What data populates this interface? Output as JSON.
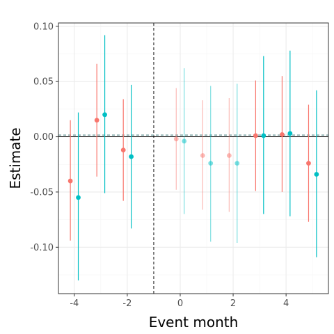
{
  "chart_data": {
    "type": "scatter",
    "title": "",
    "xlabel": "Event month",
    "ylabel": "Estimate",
    "xlim": [
      -4.6,
      5.6
    ],
    "ylim": [
      -0.142,
      0.103
    ],
    "x_ticks": [
      -4,
      -2,
      0,
      2,
      4
    ],
    "x_tick_labels": [
      "-4",
      "-2",
      "0",
      "2",
      "4"
    ],
    "y_ticks": [
      -0.1,
      -0.05,
      0.0,
      0.05,
      0.1
    ],
    "y_tick_labels": [
      "-0.10",
      "-0.05",
      "0.00",
      "0.05",
      "0.10"
    ],
    "grid": true,
    "legend": "none",
    "reference_lines": {
      "vertical_dashed_x": -1,
      "horizontal_solid_y": 0,
      "horizontal_dashed_y": 0.0015
    },
    "series": [
      {
        "color": "#F8766D",
        "points": [
          {
            "x": -4.15,
            "y": -0.04,
            "lo": -0.094,
            "hi": 0.015,
            "faded": false
          },
          {
            "x": -3.15,
            "y": 0.015,
            "lo": -0.036,
            "hi": 0.066,
            "faded": false
          },
          {
            "x": -2.15,
            "y": -0.012,
            "lo": -0.058,
            "hi": 0.034,
            "faded": false
          },
          {
            "x": -0.15,
            "y": -0.002,
            "lo": -0.048,
            "hi": 0.044,
            "faded": true
          },
          {
            "x": 0.85,
            "y": -0.017,
            "lo": -0.066,
            "hi": 0.033,
            "faded": true
          },
          {
            "x": 1.85,
            "y": -0.017,
            "lo": -0.068,
            "hi": 0.035,
            "faded": true
          },
          {
            "x": 2.85,
            "y": 0.001,
            "lo": -0.049,
            "hi": 0.051,
            "faded": false
          },
          {
            "x": 3.85,
            "y": 0.002,
            "lo": -0.05,
            "hi": 0.055,
            "faded": false
          },
          {
            "x": 4.85,
            "y": -0.024,
            "lo": -0.077,
            "hi": 0.029,
            "faded": false
          }
        ]
      },
      {
        "color": "#00BFC4",
        "points": [
          {
            "x": -3.85,
            "y": -0.055,
            "lo": -0.13,
            "hi": 0.022,
            "faded": false
          },
          {
            "x": -2.85,
            "y": 0.02,
            "lo": -0.051,
            "hi": 0.092,
            "faded": false
          },
          {
            "x": -1.85,
            "y": -0.018,
            "lo": -0.083,
            "hi": 0.047,
            "faded": false
          },
          {
            "x": 0.15,
            "y": -0.004,
            "lo": -0.07,
            "hi": 0.062,
            "faded": true
          },
          {
            "x": 1.15,
            "y": -0.024,
            "lo": -0.095,
            "hi": 0.046,
            "faded": true
          },
          {
            "x": 2.15,
            "y": -0.024,
            "lo": -0.096,
            "hi": 0.048,
            "faded": true
          },
          {
            "x": 3.15,
            "y": 0.001,
            "lo": -0.07,
            "hi": 0.073,
            "faded": false
          },
          {
            "x": 4.15,
            "y": 0.003,
            "lo": -0.072,
            "hi": 0.078,
            "faded": false
          },
          {
            "x": 5.15,
            "y": -0.034,
            "lo": -0.109,
            "hi": 0.042,
            "faded": false
          }
        ]
      }
    ],
    "colors": {
      "panel_border": "#333333",
      "grid_major": "#ebebeb",
      "grid_minor": "#f5f5f5",
      "tick_label": "#4d4d4d",
      "dashed_line": "#444444",
      "zero_line": "#000000",
      "hline_dashed_color": "#7fa6a8"
    }
  }
}
